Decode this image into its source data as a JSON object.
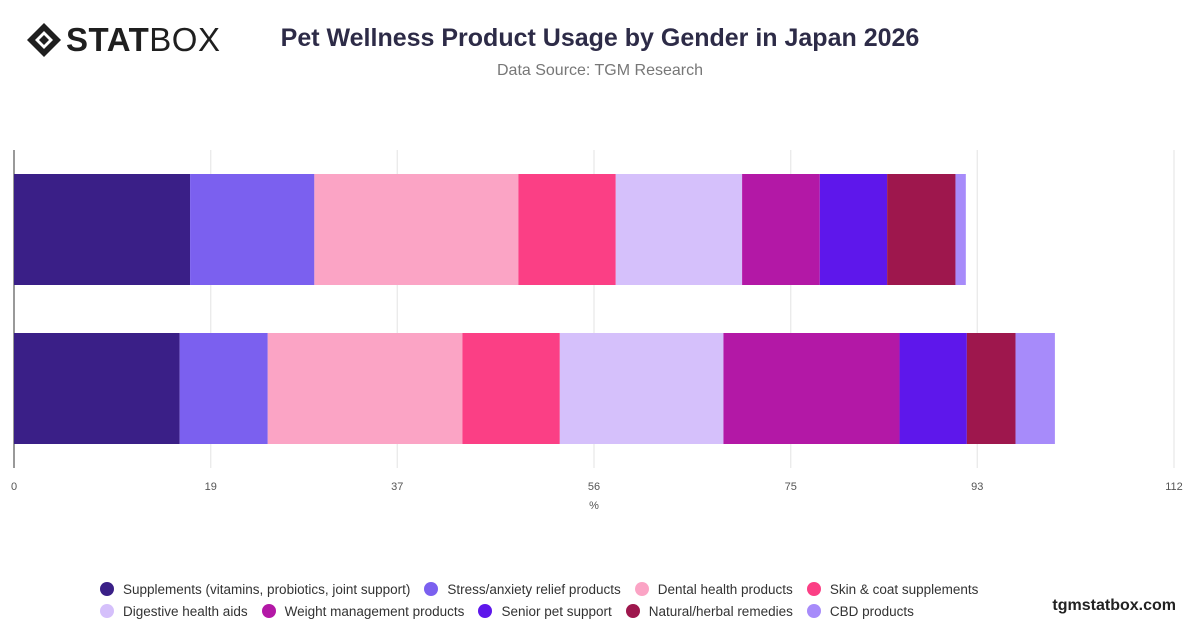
{
  "header": {
    "logo_bold": "STAT",
    "logo_light": "BOX",
    "title": "Pet Wellness Product Usage by Gender in Japan 2026",
    "subtitle": "Data Source: TGM Research"
  },
  "footer": {
    "site": "tgmstatbox.com"
  },
  "chart_data": {
    "type": "bar",
    "orientation": "horizontal",
    "stacked": true,
    "title": "Pet Wellness Product Usage by Gender in Japan 2026",
    "subtitle": "Data Source: TGM Research",
    "xlabel": "%",
    "xlim": [
      0,
      112
    ],
    "xticks": [
      "0",
      "19",
      "37",
      "56",
      "75",
      "93",
      "112"
    ],
    "categories": [
      "",
      ""
    ],
    "grid": true,
    "legend_position": "bottom",
    "series": [
      {
        "name": "Supplements (vitamins, probiotics, joint support)",
        "color": "#3a1f87",
        "values": [
          17.0,
          16.0
        ]
      },
      {
        "name": "Stress/anxiety relief products",
        "color": "#7b60ef",
        "values": [
          12.0,
          8.5
        ]
      },
      {
        "name": "Dental health products",
        "color": "#fba4c5",
        "values": [
          19.7,
          18.8
        ]
      },
      {
        "name": "Skin & coat supplements",
        "color": "#fb3f85",
        "values": [
          9.4,
          9.4
        ]
      },
      {
        "name": "Digestive health aids",
        "color": "#d5c0fb",
        "values": [
          12.2,
          15.8
        ]
      },
      {
        "name": "Weight management products",
        "color": "#b318a6",
        "values": [
          7.5,
          17.0
        ]
      },
      {
        "name": "Senior pet support",
        "color": "#5e17eb",
        "values": [
          6.5,
          6.5
        ]
      },
      {
        "name": "Natural/herbal remedies",
        "color": "#9e174d",
        "values": [
          6.6,
          4.7
        ]
      },
      {
        "name": "CBD products",
        "color": "#a78bfa",
        "values": [
          1.0,
          3.8
        ]
      }
    ]
  }
}
